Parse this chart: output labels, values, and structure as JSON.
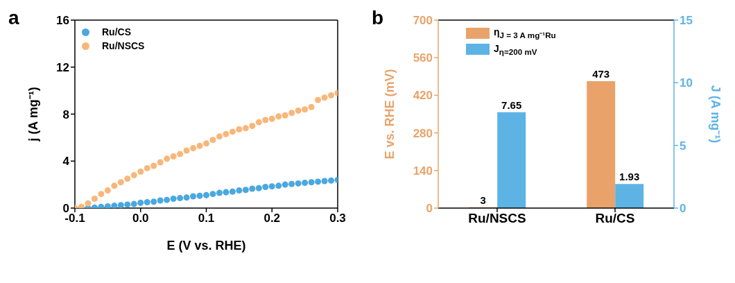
{
  "chart_data": [
    {
      "type": "scatter",
      "title": "a",
      "xlabel": "E (V vs. RHE)",
      "ylabel": "j (A mg⁻¹)",
      "xlim": [
        -0.1,
        0.3
      ],
      "ylim": [
        0,
        16
      ],
      "xticks": [
        {
          "value": -0.1,
          "label": "-0.1"
        },
        {
          "value": 0,
          "label": "0.0"
        },
        {
          "value": 0.1,
          "label": "0.1"
        },
        {
          "value": 0.2,
          "label": "0.2"
        },
        {
          "value": 0.3,
          "label": "0.3"
        }
      ],
      "yticks": [
        0,
        4,
        8,
        12,
        16
      ],
      "legend": "top left",
      "marker": "circle",
      "series": [
        {
          "name": "Ru/CS",
          "color": "#4aa8e0",
          "x": [
            -0.08,
            -0.07,
            -0.06,
            -0.05,
            -0.04,
            -0.03,
            -0.02,
            -0.01,
            0,
            0.01,
            0.02,
            0.03,
            0.04,
            0.05,
            0.06,
            0.07,
            0.08,
            0.09,
            0.1,
            0.11,
            0.12,
            0.13,
            0.14,
            0.15,
            0.16,
            0.17,
            0.18,
            0.19,
            0.2,
            0.21,
            0.22,
            0.23,
            0.24,
            0.25,
            0.26,
            0.27,
            0.28,
            0.29,
            0.3
          ],
          "values": [
            0,
            0.05,
            0.1,
            0.15,
            0.2,
            0.25,
            0.3,
            0.35,
            0.45,
            0.5,
            0.55,
            0.65,
            0.7,
            0.8,
            0.85,
            0.9,
            1.0,
            1.05,
            1.1,
            1.2,
            1.3,
            1.35,
            1.4,
            1.5,
            1.55,
            1.65,
            1.7,
            1.8,
            1.85,
            1.9,
            2.0,
            2.05,
            2.1,
            2.15,
            2.2,
            2.25,
            2.3,
            2.35,
            2.4
          ]
        },
        {
          "name": "Ru/NSCS",
          "color": "#f8b77a",
          "x": [
            -0.1,
            -0.09,
            -0.08,
            -0.07,
            -0.06,
            -0.05,
            -0.04,
            -0.03,
            -0.02,
            -0.01,
            0,
            0.01,
            0.02,
            0.03,
            0.04,
            0.05,
            0.06,
            0.07,
            0.08,
            0.09,
            0.1,
            0.11,
            0.12,
            0.13,
            0.14,
            0.15,
            0.16,
            0.17,
            0.18,
            0.19,
            0.2,
            0.21,
            0.22,
            0.23,
            0.24,
            0.25,
            0.26,
            0.27,
            0.28,
            0.29,
            0.3
          ],
          "values": [
            0,
            0.1,
            0.4,
            0.8,
            1.2,
            1.5,
            1.9,
            2.2,
            2.5,
            2.8,
            3.1,
            3.4,
            3.6,
            3.9,
            4.2,
            4.4,
            4.6,
            4.9,
            5.1,
            5.3,
            5.5,
            5.8,
            6.1,
            6.3,
            6.5,
            6.7,
            6.8,
            7.0,
            7.3,
            7.5,
            7.6,
            7.8,
            7.9,
            8.1,
            8.3,
            8.4,
            8.6,
            9.2,
            9.4,
            9.6,
            9.8
          ]
        }
      ]
    },
    {
      "type": "bar",
      "title": "b",
      "ylabel": "E vs. RHE (mV)",
      "y2label": "J (A mg⁻¹)",
      "categories": [
        "Ru/NSCS",
        "Ru/CS"
      ],
      "ylim": [
        0,
        700
      ],
      "yticks": [
        0,
        140,
        280,
        420,
        560,
        700
      ],
      "y2lim": [
        0,
        15
      ],
      "y2ticks": [
        0,
        5,
        10,
        15
      ],
      "legend": "top left",
      "data_labels": true,
      "series": [
        {
          "name": "η$_{J = 3 A mg⁻¹Ru}$",
          "color": "#e9a36a",
          "values": [
            3,
            473
          ]
        },
        {
          "name": "J$_{η=200 mV}$",
          "color": "#5db3e4",
          "axis": "y2",
          "values": [
            7.65,
            1.93
          ]
        }
      ]
    }
  ]
}
